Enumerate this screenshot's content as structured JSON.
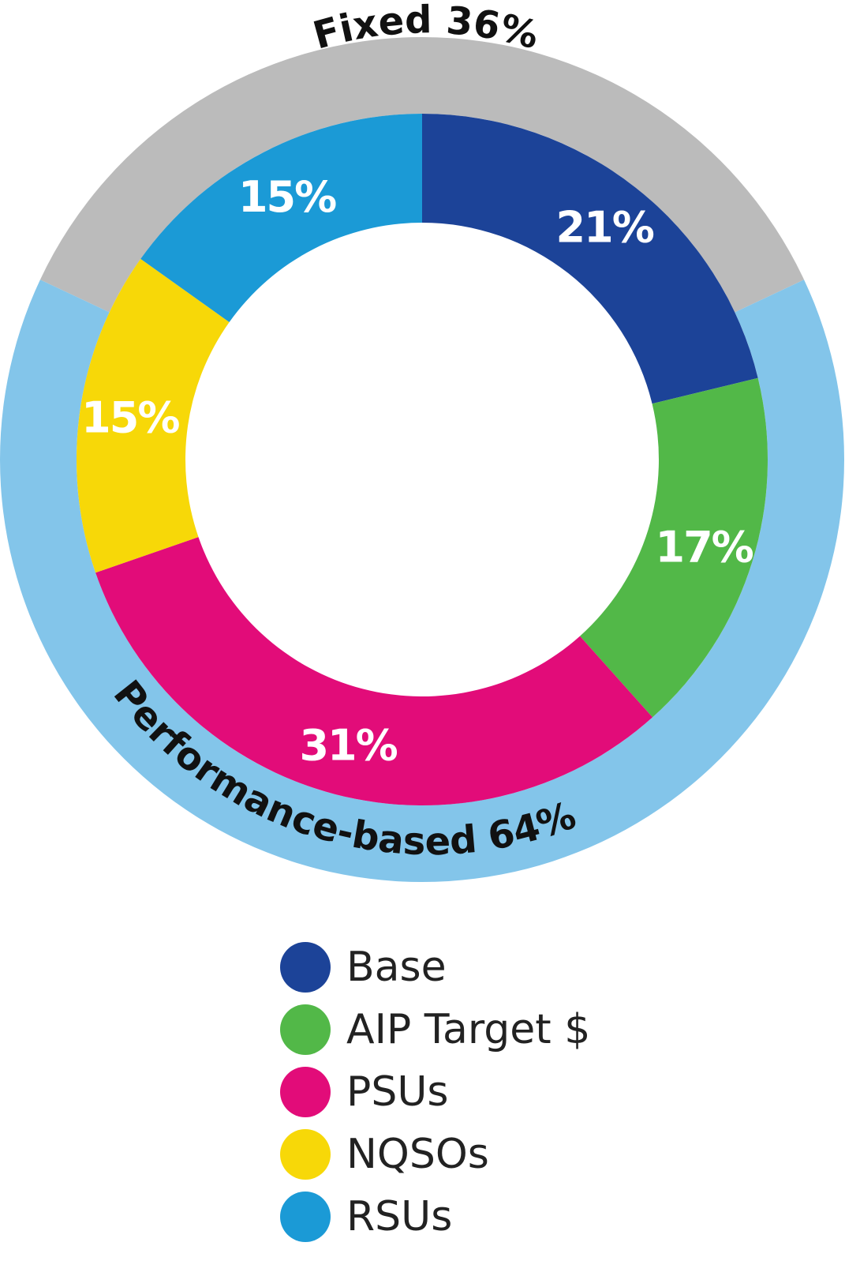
{
  "chart_data": {
    "type": "pie",
    "variant": "nested-donut",
    "inner_series": {
      "name": "Components",
      "categories": [
        "Base",
        "AIP Target $",
        "PSUs",
        "NQSOs",
        "RSUs"
      ],
      "values": [
        21,
        17,
        31,
        15,
        15
      ],
      "labels": [
        "21%",
        "17%",
        "31%",
        "15%",
        "15%"
      ],
      "colors": [
        "#1c4398",
        "#52b848",
        "#e20c79",
        "#f7d808",
        "#1b9ad6"
      ]
    },
    "outer_series": {
      "name": "Pay type",
      "categories": [
        "Fixed",
        "Performance-based"
      ],
      "values": [
        36,
        64
      ],
      "labels": [
        "Fixed 36%",
        "Performance-based 64%"
      ],
      "colors": [
        "#bbbbbb",
        "#83c5ea"
      ]
    },
    "legend": {
      "placement": "bottom",
      "items": [
        "Base",
        "AIP Target $",
        "PSUs",
        "NQSOs",
        "RSUs"
      ]
    }
  }
}
